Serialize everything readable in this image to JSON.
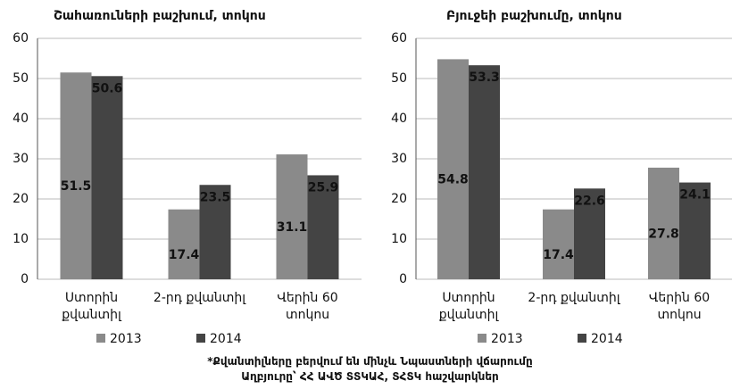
{
  "chart_data": [
    {
      "type": "bar",
      "title": "Շահառուների բաշխում, տոկոս",
      "categories": [
        "Ստորին\nքվանտիլ",
        "2-րդ քվանտիլ",
        "Վերին 60 տոկոս"
      ],
      "series": [
        {
          "name": "2013",
          "color": "#8a8a8a",
          "values": [
            51.5,
            17.4,
            31.1
          ]
        },
        {
          "name": "2014",
          "color": "#444444",
          "values": [
            50.6,
            23.5,
            25.9
          ]
        }
      ],
      "ylim": [
        0,
        60
      ],
      "yticks": [
        0,
        10,
        20,
        30,
        40,
        50,
        60
      ],
      "grid": true
    },
    {
      "type": "bar",
      "title": "Բյուջեի բաշխումը, տոկոս",
      "categories": [
        "Ստորին\nքվանտիլ",
        "2-րդ քվանտիլ",
        "Վերին 60 տոկոս"
      ],
      "series": [
        {
          "name": "2013",
          "color": "#8a8a8a",
          "values": [
            54.8,
            17.4,
            27.8
          ]
        },
        {
          "name": "2014",
          "color": "#444444",
          "values": [
            53.3,
            22.6,
            24.1
          ]
        }
      ],
      "ylim": [
        0,
        60
      ],
      "yticks": [
        0,
        10,
        20,
        30,
        40,
        50,
        60
      ],
      "grid": true
    }
  ],
  "notes": [
    "*Քվանտիլները բերվում են մինչև Նպաստների վճարումը",
    "Աղբյուրը՝ ՀՀ ԱՎԾ ՏՏԿԱՀ, ՏՀՏԿ հաշվարկներ"
  ]
}
